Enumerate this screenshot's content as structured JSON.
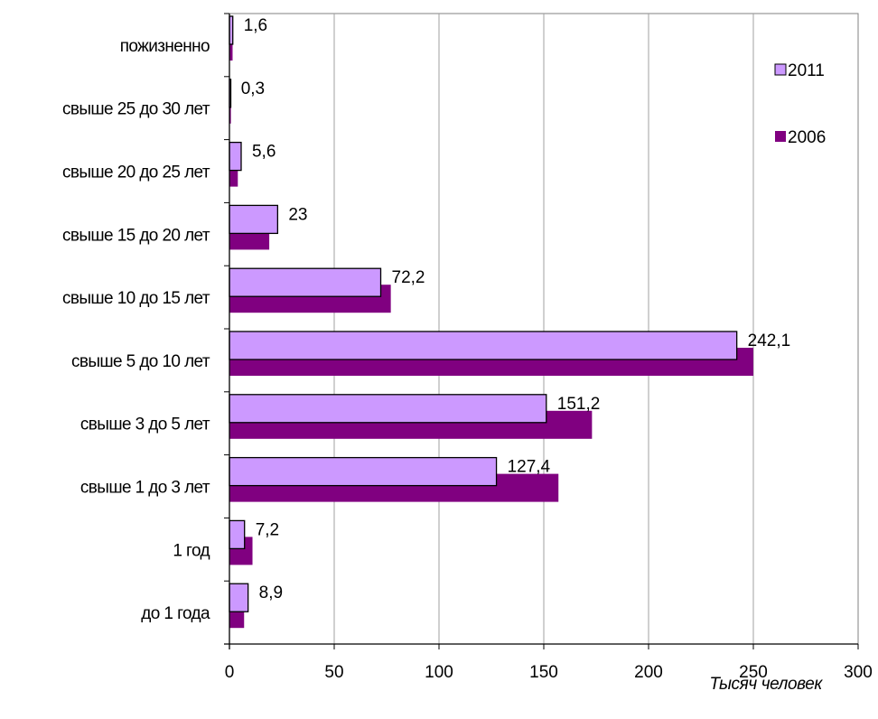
{
  "chart_data": {
    "type": "bar",
    "orientation": "horizontal",
    "categories": [
      "пожизненно",
      "свыше 25 до 30 лет",
      "свыше 20 до 25 лет",
      "свыше 15 до 20 лет",
      "свыше 10  до 15 лет",
      "свыше 5 до 10 лет",
      "свыше 3 до 5 лет",
      "свыше 1 до 3 лет",
      "1 год",
      "до 1 года"
    ],
    "series": [
      {
        "name": "2011",
        "color": "#cc99ff",
        "values": [
          1.6,
          0.3,
          5.6,
          23,
          72.2,
          242.1,
          151.2,
          127.4,
          7.2,
          8.9
        ],
        "data_labels": [
          "1,6",
          "0,3",
          "5,6",
          "23",
          "72,2",
          "242,1",
          "151,2",
          "127,4",
          "7,2",
          "8,9"
        ]
      },
      {
        "name": "2006",
        "color": "#800080",
        "values": [
          1.5,
          0.7,
          4,
          19,
          77,
          250,
          173,
          157,
          11,
          7
        ]
      }
    ],
    "xlabel": "Тысяч человек",
    "ylabel": "",
    "title": "",
    "xlim": [
      0,
      300
    ],
    "xticks": [
      0,
      50,
      100,
      150,
      200,
      250,
      300
    ],
    "grid": "vertical",
    "legend": "top-right"
  }
}
